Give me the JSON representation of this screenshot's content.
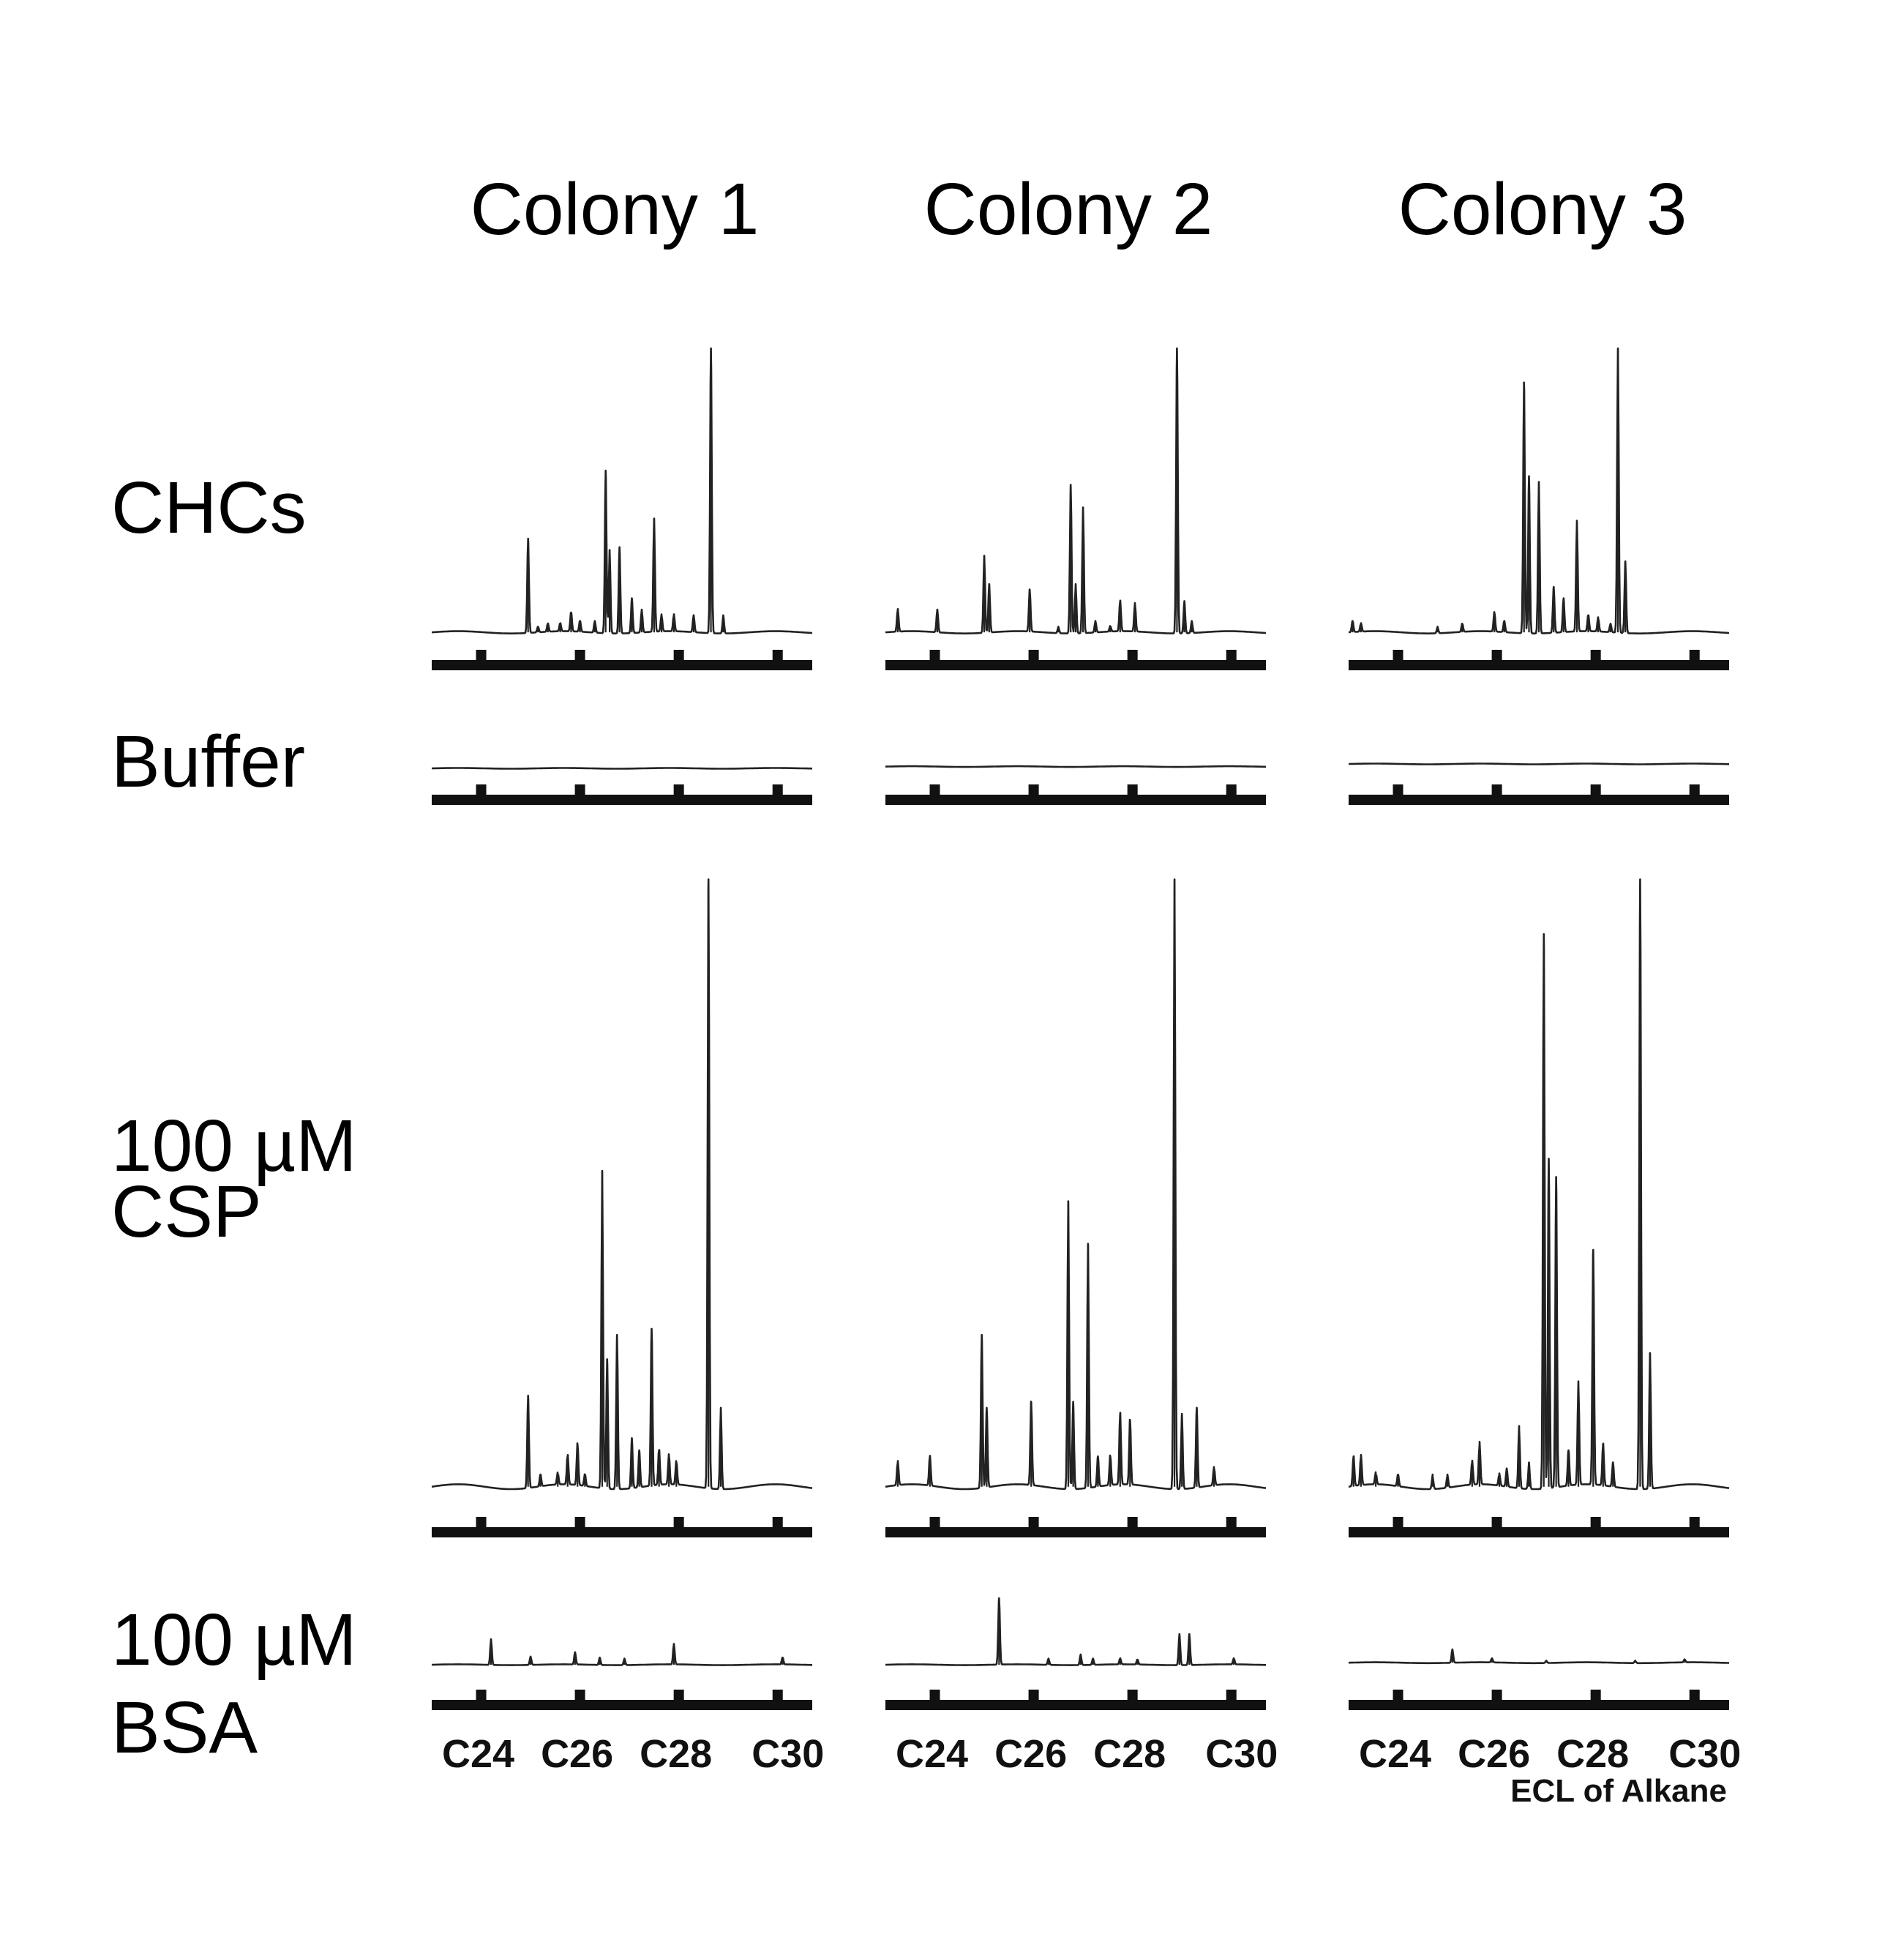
{
  "columns": [
    "Colony 1",
    "Colony 2",
    "Colony 3"
  ],
  "rows": [
    {
      "key": "chcs",
      "label_lines": [
        "CHCs"
      ]
    },
    {
      "key": "buffer",
      "label_lines": [
        "Buffer"
      ]
    },
    {
      "key": "csp",
      "label_lines": [
        "100 µM",
        "CSP"
      ]
    },
    {
      "key": "bsa",
      "label_lines": [
        "100 µM",
        "BSA"
      ]
    }
  ],
  "chart_data": {
    "type": "line",
    "x_axis": {
      "title": "ECL of Alkane",
      "ticks": [
        24,
        26,
        28,
        30
      ],
      "tick_labels": [
        "C24",
        "C26",
        "C28",
        "C30"
      ],
      "range": [
        23,
        30.7
      ]
    },
    "y_scale": "relative abundance (unlabeled)",
    "panels": [
      {
        "row": "chcs",
        "column": "Colony 1",
        "baseline": 0.01,
        "peaks": [
          {
            "x": 24.95,
            "h": 0.33
          },
          {
            "x": 25.15,
            "h": 0.02
          },
          {
            "x": 25.35,
            "h": 0.03
          },
          {
            "x": 25.6,
            "h": 0.03
          },
          {
            "x": 25.82,
            "h": 0.07
          },
          {
            "x": 26.0,
            "h": 0.04
          },
          {
            "x": 26.3,
            "h": 0.04
          },
          {
            "x": 26.52,
            "h": 0.57
          },
          {
            "x": 26.6,
            "h": 0.29
          },
          {
            "x": 26.8,
            "h": 0.3
          },
          {
            "x": 27.05,
            "h": 0.12
          },
          {
            "x": 27.25,
            "h": 0.08
          },
          {
            "x": 27.5,
            "h": 0.4
          },
          {
            "x": 27.65,
            "h": 0.06
          },
          {
            "x": 27.9,
            "h": 0.06
          },
          {
            "x": 28.3,
            "h": 0.06
          },
          {
            "x": 28.65,
            "h": 1.0
          },
          {
            "x": 28.9,
            "h": 0.06
          }
        ]
      },
      {
        "row": "chcs",
        "column": "Colony 2",
        "baseline": 0.01,
        "peaks": [
          {
            "x": 23.25,
            "h": 0.08
          },
          {
            "x": 24.05,
            "h": 0.08
          },
          {
            "x": 25.0,
            "h": 0.27
          },
          {
            "x": 25.1,
            "h": 0.17
          },
          {
            "x": 25.92,
            "h": 0.15
          },
          {
            "x": 26.5,
            "h": 0.02
          },
          {
            "x": 26.75,
            "h": 0.52
          },
          {
            "x": 26.85,
            "h": 0.17
          },
          {
            "x": 27.0,
            "h": 0.44
          },
          {
            "x": 27.25,
            "h": 0.04
          },
          {
            "x": 27.55,
            "h": 0.02
          },
          {
            "x": 27.75,
            "h": 0.11
          },
          {
            "x": 28.05,
            "h": 0.1
          },
          {
            "x": 28.9,
            "h": 1.0
          },
          {
            "x": 29.05,
            "h": 0.11
          },
          {
            "x": 29.2,
            "h": 0.04
          }
        ]
      },
      {
        "row": "chcs",
        "column": "Colony 3",
        "baseline": 0.01,
        "peaks": [
          {
            "x": 23.08,
            "h": 0.04
          },
          {
            "x": 23.25,
            "h": 0.03
          },
          {
            "x": 24.8,
            "h": 0.02
          },
          {
            "x": 25.3,
            "h": 0.03
          },
          {
            "x": 25.95,
            "h": 0.07
          },
          {
            "x": 26.15,
            "h": 0.04
          },
          {
            "x": 26.55,
            "h": 0.88
          },
          {
            "x": 26.65,
            "h": 0.55
          },
          {
            "x": 26.85,
            "h": 0.53
          },
          {
            "x": 27.15,
            "h": 0.16
          },
          {
            "x": 27.35,
            "h": 0.12
          },
          {
            "x": 27.62,
            "h": 0.39
          },
          {
            "x": 27.85,
            "h": 0.06
          },
          {
            "x": 28.05,
            "h": 0.05
          },
          {
            "x": 28.45,
            "h": 1.0
          },
          {
            "x": 28.6,
            "h": 0.25
          },
          {
            "x": 28.3,
            "h": 0.03
          }
        ]
      },
      {
        "row": "buffer",
        "column": "Colony 1",
        "baseline": 0.0,
        "peaks": []
      },
      {
        "row": "buffer",
        "column": "Colony 2",
        "baseline": 0.02,
        "peaks": []
      },
      {
        "row": "buffer",
        "column": "Colony 3",
        "baseline": 0.05,
        "peaks": []
      },
      {
        "row": "csp",
        "column": "Colony 1",
        "baseline": 0.01,
        "peaks": [
          {
            "x": 24.95,
            "h": 0.15
          },
          {
            "x": 25.2,
            "h": 0.02
          },
          {
            "x": 25.55,
            "h": 0.02
          },
          {
            "x": 25.75,
            "h": 0.05
          },
          {
            "x": 25.95,
            "h": 0.07
          },
          {
            "x": 26.1,
            "h": 0.02
          },
          {
            "x": 26.45,
            "h": 0.52
          },
          {
            "x": 26.55,
            "h": 0.21
          },
          {
            "x": 26.75,
            "h": 0.25
          },
          {
            "x": 27.05,
            "h": 0.08
          },
          {
            "x": 27.2,
            "h": 0.06
          },
          {
            "x": 27.45,
            "h": 0.26
          },
          {
            "x": 27.6,
            "h": 0.06
          },
          {
            "x": 27.8,
            "h": 0.05
          },
          {
            "x": 27.95,
            "h": 0.04
          },
          {
            "x": 28.6,
            "h": 1.0
          },
          {
            "x": 28.85,
            "h": 0.13
          }
        ]
      },
      {
        "row": "csp",
        "column": "Colony 2",
        "baseline": 0.01,
        "peaks": [
          {
            "x": 23.25,
            "h": 0.04
          },
          {
            "x": 23.9,
            "h": 0.05
          },
          {
            "x": 24.95,
            "h": 0.25
          },
          {
            "x": 25.05,
            "h": 0.13
          },
          {
            "x": 25.95,
            "h": 0.14
          },
          {
            "x": 26.7,
            "h": 0.47
          },
          {
            "x": 26.8,
            "h": 0.14
          },
          {
            "x": 27.1,
            "h": 0.4
          },
          {
            "x": 27.3,
            "h": 0.05
          },
          {
            "x": 27.55,
            "h": 0.05
          },
          {
            "x": 27.75,
            "h": 0.12
          },
          {
            "x": 27.95,
            "h": 0.11
          },
          {
            "x": 28.85,
            "h": 1.0
          },
          {
            "x": 29.0,
            "h": 0.12
          },
          {
            "x": 29.3,
            "h": 0.13
          },
          {
            "x": 29.65,
            "h": 0.03
          }
        ]
      },
      {
        "row": "csp",
        "column": "Colony 3",
        "baseline": 0.01,
        "peaks": [
          {
            "x": 23.1,
            "h": 0.05
          },
          {
            "x": 23.25,
            "h": 0.05
          },
          {
            "x": 23.55,
            "h": 0.02
          },
          {
            "x": 24.0,
            "h": 0.02
          },
          {
            "x": 24.7,
            "h": 0.02
          },
          {
            "x": 25.0,
            "h": 0.02
          },
          {
            "x": 25.5,
            "h": 0.04
          },
          {
            "x": 25.65,
            "h": 0.07
          },
          {
            "x": 26.05,
            "h": 0.02
          },
          {
            "x": 26.2,
            "h": 0.03
          },
          {
            "x": 26.45,
            "h": 0.1
          },
          {
            "x": 26.65,
            "h": 0.04
          },
          {
            "x": 26.95,
            "h": 0.91
          },
          {
            "x": 27.05,
            "h": 0.54
          },
          {
            "x": 27.2,
            "h": 0.51
          },
          {
            "x": 27.45,
            "h": 0.06
          },
          {
            "x": 27.65,
            "h": 0.17
          },
          {
            "x": 27.95,
            "h": 0.39
          },
          {
            "x": 28.15,
            "h": 0.07
          },
          {
            "x": 28.35,
            "h": 0.04
          },
          {
            "x": 28.9,
            "h": 1.0
          },
          {
            "x": 29.1,
            "h": 0.22
          }
        ]
      },
      {
        "row": "bsa",
        "column": "Colony 1",
        "baseline": 0.0,
        "peaks": [
          {
            "x": 24.2,
            "h": 0.25
          },
          {
            "x": 25.0,
            "h": 0.08
          },
          {
            "x": 25.9,
            "h": 0.12
          },
          {
            "x": 26.4,
            "h": 0.07
          },
          {
            "x": 26.9,
            "h": 0.06
          },
          {
            "x": 27.9,
            "h": 0.2
          },
          {
            "x": 30.1,
            "h": 0.07
          }
        ]
      },
      {
        "row": "bsa",
        "column": "Colony 2",
        "baseline": 0.0,
        "peaks": [
          {
            "x": 25.3,
            "h": 0.65
          },
          {
            "x": 26.3,
            "h": 0.06
          },
          {
            "x": 26.95,
            "h": 0.1
          },
          {
            "x": 27.2,
            "h": 0.06
          },
          {
            "x": 27.75,
            "h": 0.06
          },
          {
            "x": 28.1,
            "h": 0.05
          },
          {
            "x": 28.95,
            "h": 0.3
          },
          {
            "x": 29.15,
            "h": 0.3
          },
          {
            "x": 30.05,
            "h": 0.06
          }
        ]
      },
      {
        "row": "bsa",
        "column": "Colony 3",
        "baseline": 0.02,
        "peaks": [
          {
            "x": 25.1,
            "h": 0.13
          },
          {
            "x": 25.9,
            "h": 0.04
          },
          {
            "x": 27.0,
            "h": 0.02
          },
          {
            "x": 28.8,
            "h": 0.02
          },
          {
            "x": 29.8,
            "h": 0.03
          }
        ]
      }
    ]
  }
}
